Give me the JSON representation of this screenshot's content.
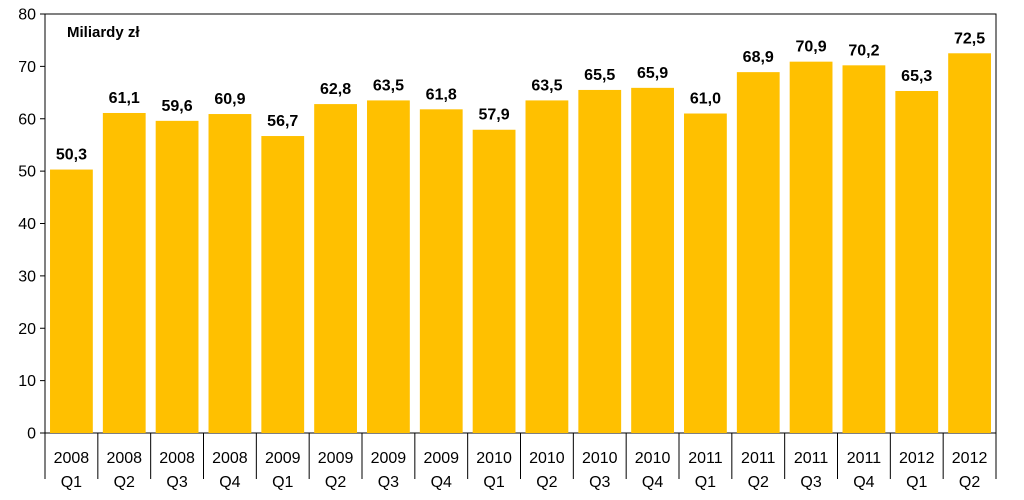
{
  "chart_data": {
    "type": "bar",
    "unit_label": "Miliardy zł",
    "categories": [
      {
        "year": "2008",
        "quarter": "Q1"
      },
      {
        "year": "2008",
        "quarter": "Q2"
      },
      {
        "year": "2008",
        "quarter": "Q3"
      },
      {
        "year": "2008",
        "quarter": "Q4"
      },
      {
        "year": "2009",
        "quarter": "Q1"
      },
      {
        "year": "2009",
        "quarter": "Q2"
      },
      {
        "year": "2009",
        "quarter": "Q3"
      },
      {
        "year": "2009",
        "quarter": "Q4"
      },
      {
        "year": "2010",
        "quarter": "Q1"
      },
      {
        "year": "2010",
        "quarter": "Q2"
      },
      {
        "year": "2010",
        "quarter": "Q3"
      },
      {
        "year": "2010",
        "quarter": "Q4"
      },
      {
        "year": "2011",
        "quarter": "Q1"
      },
      {
        "year": "2011",
        "quarter": "Q2"
      },
      {
        "year": "2011",
        "quarter": "Q3"
      },
      {
        "year": "2011",
        "quarter": "Q4"
      },
      {
        "year": "2012",
        "quarter": "Q1"
      },
      {
        "year": "2012",
        "quarter": "Q2"
      }
    ],
    "values": [
      50.3,
      61.1,
      59.6,
      60.9,
      56.7,
      62.8,
      63.5,
      61.8,
      57.9,
      63.5,
      65.5,
      65.9,
      61.0,
      68.9,
      70.9,
      70.2,
      65.3,
      72.5
    ],
    "value_labels": [
      "50,3",
      "61,1",
      "59,6",
      "60,9",
      "56,7",
      "62,8",
      "63,5",
      "61,8",
      "57,9",
      "63,5",
      "65,5",
      "65,9",
      "61,0",
      "68,9",
      "70,9",
      "70,2",
      "65,3",
      "72,5"
    ],
    "ylim": [
      0,
      80
    ],
    "yticks": [
      0,
      10,
      20,
      30,
      40,
      50,
      60,
      70,
      80
    ],
    "bar_color": "#FFC000",
    "grid": false,
    "legend": "none"
  }
}
